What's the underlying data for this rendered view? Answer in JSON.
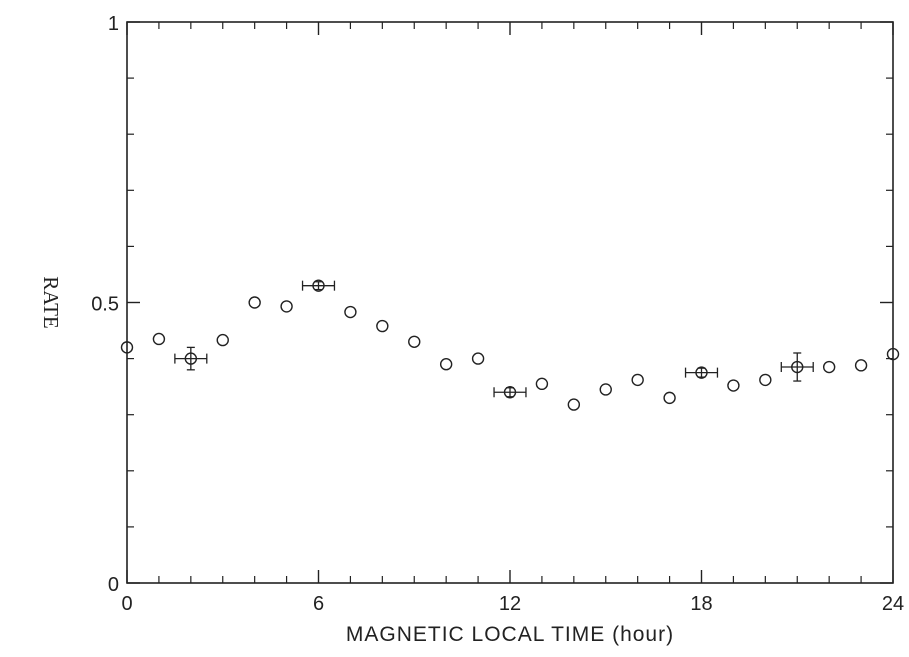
{
  "chart_data": {
    "type": "scatter",
    "xlabel": "MAGNETIC LOCAL TIME (hour)",
    "ylabel": "RATE",
    "xlim": [
      0,
      24
    ],
    "ylim": [
      0,
      1
    ],
    "x_ticks": [
      "0",
      "6",
      "12",
      "18",
      "24"
    ],
    "y_ticks": [
      "0",
      "0.5",
      "1"
    ],
    "grid": false,
    "marker": "open-circle",
    "color": "#222222",
    "points": [
      {
        "x": 0,
        "y": 0.42
      },
      {
        "x": 1,
        "y": 0.435
      },
      {
        "x": 2,
        "y": 0.4,
        "xerr": 0.5,
        "yerr": 0.02
      },
      {
        "x": 3,
        "y": 0.433
      },
      {
        "x": 4,
        "y": 0.5
      },
      {
        "x": 5,
        "y": 0.493
      },
      {
        "x": 6,
        "y": 0.53,
        "xerr": 0.5,
        "yerr": 0.007
      },
      {
        "x": 7,
        "y": 0.483
      },
      {
        "x": 8,
        "y": 0.458
      },
      {
        "x": 9,
        "y": 0.43
      },
      {
        "x": 10,
        "y": 0.39
      },
      {
        "x": 11,
        "y": 0.4
      },
      {
        "x": 12,
        "y": 0.34,
        "xerr": 0.5,
        "yerr": 0.008
      },
      {
        "x": 13,
        "y": 0.355
      },
      {
        "x": 14,
        "y": 0.318
      },
      {
        "x": 15,
        "y": 0.345
      },
      {
        "x": 16,
        "y": 0.362
      },
      {
        "x": 17,
        "y": 0.33
      },
      {
        "x": 18,
        "y": 0.375,
        "xerr": 0.5,
        "yerr": 0.008
      },
      {
        "x": 19,
        "y": 0.352
      },
      {
        "x": 20,
        "y": 0.362
      },
      {
        "x": 21,
        "y": 0.385,
        "xerr": 0.5,
        "yerr": 0.025
      },
      {
        "x": 22,
        "y": 0.385
      },
      {
        "x": 23,
        "y": 0.388
      },
      {
        "x": 24,
        "y": 0.408
      }
    ]
  }
}
